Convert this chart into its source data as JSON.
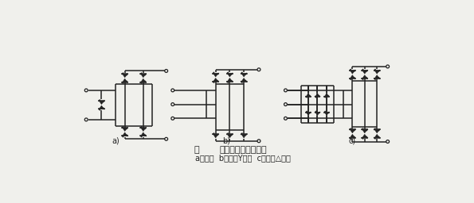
{
  "title_fig": "图",
  "title_text": "压敏电阻保护的接法",
  "subtitle": "a）单相  b）三相Y联结  c）三相△联结",
  "label_a": "a)",
  "label_b": "b)",
  "label_c": "c)",
  "bg_color": "#f0f0ec",
  "line_color": "#222222",
  "line_width": 1.1,
  "tvs_size": 8,
  "font_size_title": 8,
  "font_size_label": 7,
  "font_size_sub": 7
}
